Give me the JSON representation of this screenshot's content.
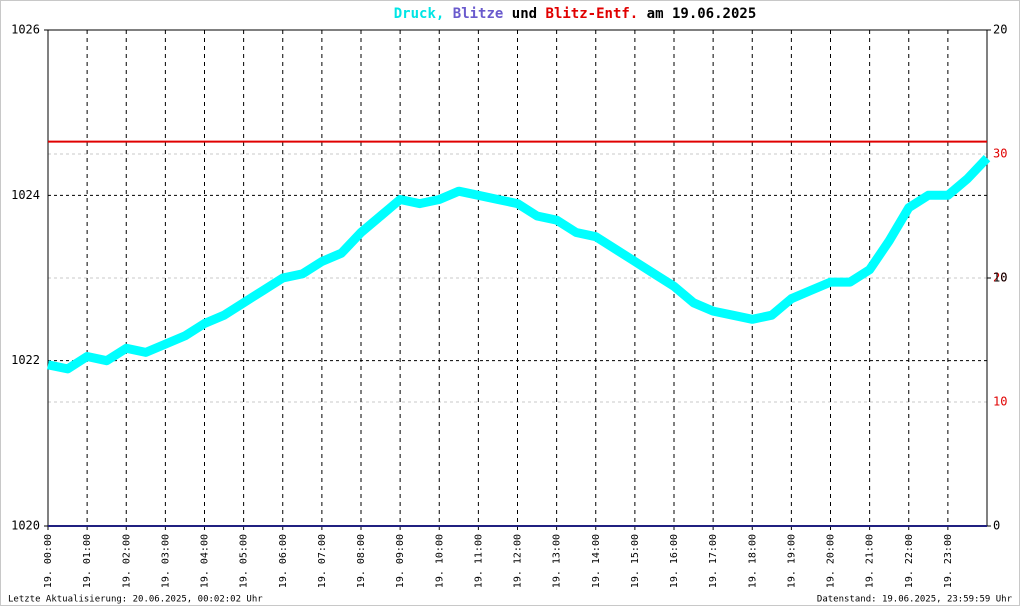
{
  "chart_data": {
    "type": "line",
    "title_parts": [
      {
        "text": "Druck,",
        "color": "#00e5e5"
      },
      {
        "text": "Blitze",
        "color": "#6a5acd"
      },
      {
        "text": "und",
        "color": "#000000"
      },
      {
        "text": "Blitz-Entf.",
        "color": "#e00000"
      },
      {
        "text": "am 19.06.2025",
        "color": "#000000"
      }
    ],
    "footer_left": "Letzte Aktualisierung: 20.06.2025, 00:02:02 Uhr",
    "footer_right": "Datenstand: 19.06.2025, 23:59:59 Uhr",
    "xlim": [
      0,
      24
    ],
    "xticks": [
      {
        "value": 0,
        "label": "19. 00:00"
      },
      {
        "value": 1,
        "label": "19. 01:00"
      },
      {
        "value": 2,
        "label": "19. 02:00"
      },
      {
        "value": 3,
        "label": "19. 03:00"
      },
      {
        "value": 4,
        "label": "19. 04:00"
      },
      {
        "value": 5,
        "label": "19. 05:00"
      },
      {
        "value": 6,
        "label": "19. 06:00"
      },
      {
        "value": 7,
        "label": "19. 07:00"
      },
      {
        "value": 8,
        "label": "19. 08:00"
      },
      {
        "value": 9,
        "label": "19. 09:00"
      },
      {
        "value": 10,
        "label": "19. 10:00"
      },
      {
        "value": 11,
        "label": "19. 11:00"
      },
      {
        "value": 12,
        "label": "19. 12:00"
      },
      {
        "value": 13,
        "label": "19. 13:00"
      },
      {
        "value": 14,
        "label": "19. 14:00"
      },
      {
        "value": 15,
        "label": "19. 15:00"
      },
      {
        "value": 16,
        "label": "19. 16:00"
      },
      {
        "value": 17,
        "label": "19. 17:00"
      },
      {
        "value": 18,
        "label": "19. 18:00"
      },
      {
        "value": 19,
        "label": "19. 19:00"
      },
      {
        "value": 20,
        "label": "19. 20:00"
      },
      {
        "value": 21,
        "label": "19. 21:00"
      },
      {
        "value": 22,
        "label": "19. 22:00"
      },
      {
        "value": 23,
        "label": "19. 23:00"
      }
    ],
    "ylim": [
      1020,
      1026
    ],
    "yticks": [
      1020,
      1022,
      1024,
      1026
    ],
    "y2lim": [
      0,
      20
    ],
    "y2ticks": [
      0,
      10,
      20
    ],
    "y3lim": [
      0,
      40
    ],
    "y3ticks": [
      10,
      20,
      30
    ],
    "series": [
      {
        "name": "Druck",
        "color": "#00ffff",
        "axis": "y",
        "x": [
          0,
          0.5,
          1,
          1.5,
          2,
          2.5,
          3,
          3.5,
          4,
          4.5,
          5,
          5.5,
          6,
          6.5,
          7,
          7.5,
          8,
          8.5,
          9,
          9.5,
          10,
          10.5,
          11,
          11.5,
          12,
          12.5,
          13,
          13.5,
          14,
          14.5,
          15,
          15.5,
          16,
          16.5,
          17,
          17.5,
          18,
          18.5,
          19,
          19.5,
          20,
          20.5,
          21,
          21.5,
          22,
          22.5,
          23,
          23.5,
          24
        ],
        "values": [
          1021.95,
          1021.9,
          1022.05,
          1022.0,
          1022.15,
          1022.1,
          1022.2,
          1022.3,
          1022.45,
          1022.55,
          1022.7,
          1022.85,
          1023.0,
          1023.05,
          1023.2,
          1023.3,
          1023.55,
          1023.75,
          1023.95,
          1023.9,
          1023.95,
          1024.05,
          1024.0,
          1023.95,
          1023.9,
          1023.75,
          1023.7,
          1023.55,
          1023.5,
          1023.35,
          1023.2,
          1023.05,
          1022.9,
          1022.7,
          1022.6,
          1022.55,
          1022.5,
          1022.55,
          1022.75,
          1022.85,
          1022.95,
          1022.95,
          1023.1,
          1023.45,
          1023.85,
          1024.0,
          1024.0,
          1024.2,
          1024.45
        ]
      },
      {
        "name": "Blitze",
        "color": "#202080",
        "axis": "y2",
        "x": [
          0,
          24
        ],
        "values": [
          0,
          0
        ]
      },
      {
        "name": "Blitz-Entf.",
        "color": "#e00000",
        "axis": "y3",
        "x": [
          0,
          24
        ],
        "values": [
          31,
          31
        ]
      }
    ]
  }
}
